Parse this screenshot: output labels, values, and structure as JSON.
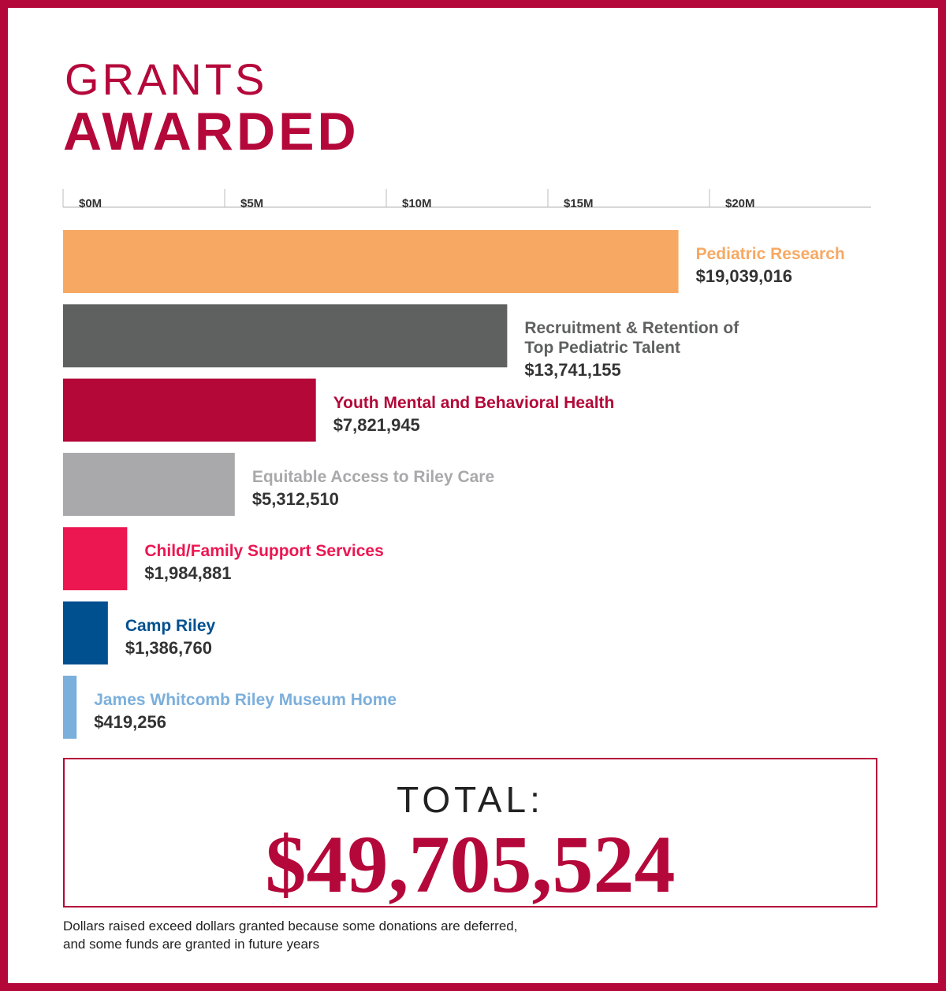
{
  "chart_data": {
    "type": "bar",
    "orientation": "horizontal",
    "title": "GRANTS",
    "subtitle": "AWARDED",
    "categories": [
      "Pediatric Research",
      "Recruitment & Retention of\nTop Pediatric Talent",
      "Youth Mental and Behavioral Health",
      "Equitable Access to Riley Care",
      "Child/Family Support Services",
      "Camp Riley",
      "James Whitcomb Riley Museum Home"
    ],
    "values": [
      19039016,
      13741155,
      7821945,
      5312510,
      1984881,
      1386760,
      419256
    ],
    "value_labels": [
      "$19,039,016",
      "$13,741,155",
      "$7,821,945",
      "$5,312,510",
      "$1,984,881",
      "$1,386,760",
      "$419,256"
    ],
    "colors": [
      "#f7a964",
      "#5f6160",
      "#b30838",
      "#a9a9ab",
      "#ec1651",
      "#00508f",
      "#7bafdc"
    ],
    "xlim": [
      0,
      25000000
    ],
    "xticks": [
      {
        "value": 0,
        "label": "$0M"
      },
      {
        "value": 5000000,
        "label": "$5M"
      },
      {
        "value": 10000000,
        "label": "$10M"
      },
      {
        "value": 15000000,
        "label": "$15M"
      },
      {
        "value": 20000000,
        "label": "$20M"
      }
    ],
    "total_label": "TOTAL:",
    "total_value": "$49,705,524",
    "footnote": "Dollars raised exceed dollars granted because some donations are deferred,\nand some funds are granted in future years"
  }
}
